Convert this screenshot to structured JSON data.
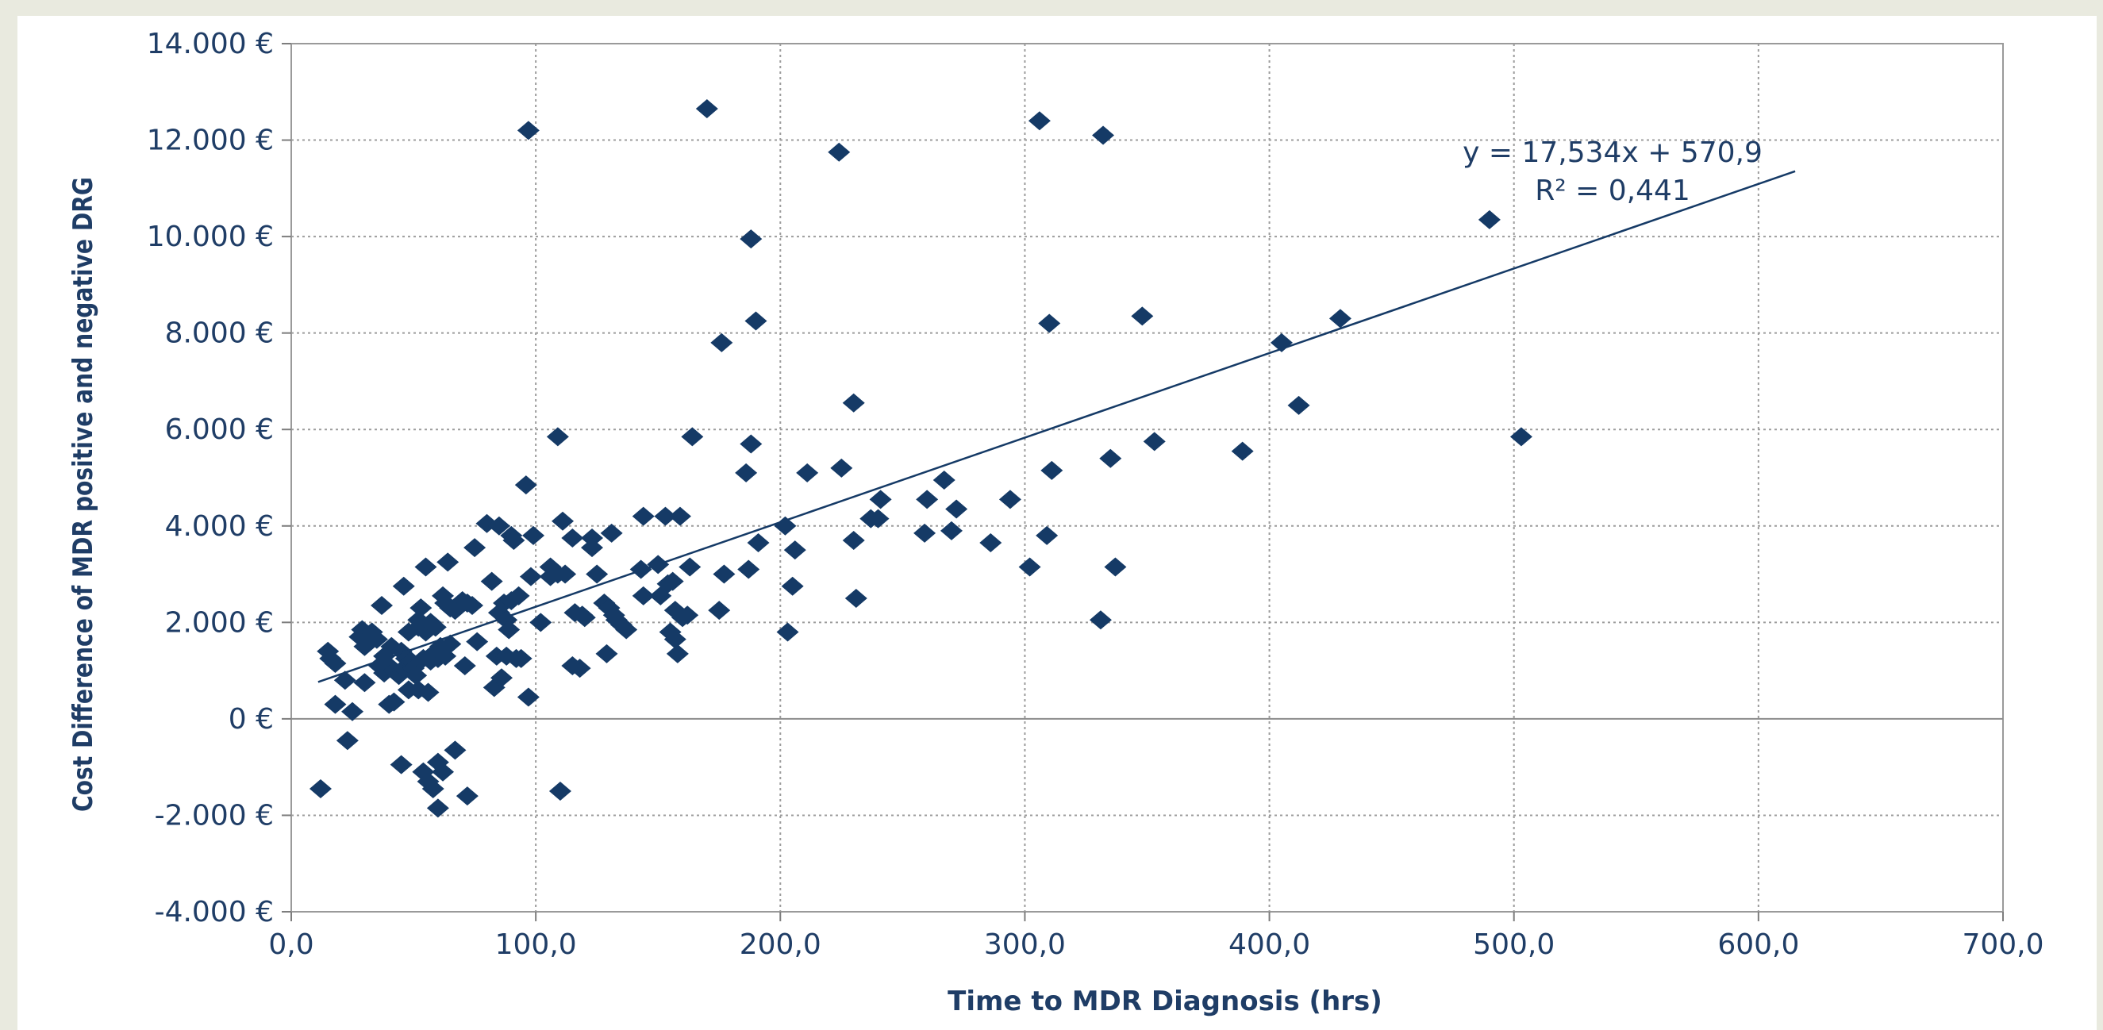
{
  "chart_data": {
    "type": "scatter",
    "title": "",
    "xlabel": "Time to MDR Diagnosis (hrs)",
    "ylabel": "Cost Difference of MDR positive and negative DRG",
    "xlim": [
      0,
      700
    ],
    "ylim": [
      -4000,
      14000
    ],
    "x_tick_labels": [
      "0,0",
      "100,0",
      "200,0",
      "300,0",
      "400,0",
      "500,0",
      "600,0",
      "700,0"
    ],
    "y_tick_labels": [
      "14.000 €",
      "12.000 €",
      "10.000 €",
      "8.000 €",
      "6.000 €",
      "4.000 €",
      "2.000 €",
      "0 €",
      "-2.000 €",
      "-4.000 €"
    ],
    "grid": true,
    "legend": "none",
    "marker_color": "#153a66",
    "line_color": "#153a66",
    "trendline": {
      "slope": 17.534,
      "intercept": 570.9,
      "x_range": [
        11,
        615
      ],
      "equation": "y = 17,534x + 570,9",
      "r_squared": "R² = 0,441"
    },
    "points": [
      [
        12,
        -1450
      ],
      [
        15,
        1400
      ],
      [
        16,
        1250
      ],
      [
        18,
        1150
      ],
      [
        18,
        300
      ],
      [
        22,
        800
      ],
      [
        23,
        -450
      ],
      [
        25,
        150
      ],
      [
        28,
        1700
      ],
      [
        29,
        1850
      ],
      [
        30,
        1500
      ],
      [
        30,
        750
      ],
      [
        32,
        1600
      ],
      [
        33,
        1800
      ],
      [
        35,
        1650
      ],
      [
        36,
        1100
      ],
      [
        37,
        2350
      ],
      [
        38,
        1300
      ],
      [
        38,
        950
      ],
      [
        40,
        1100
      ],
      [
        40,
        300
      ],
      [
        41,
        1500
      ],
      [
        42,
        1000
      ],
      [
        42,
        350
      ],
      [
        44,
        900
      ],
      [
        45,
        1400
      ],
      [
        45,
        -950
      ],
      [
        46,
        1050
      ],
      [
        46,
        2750
      ],
      [
        47,
        1250
      ],
      [
        48,
        600
      ],
      [
        48,
        1800
      ],
      [
        49,
        1200
      ],
      [
        50,
        1050
      ],
      [
        51,
        900
      ],
      [
        52,
        2050
      ],
      [
        52,
        1900
      ],
      [
        52,
        600
      ],
      [
        53,
        2300
      ],
      [
        54,
        1250
      ],
      [
        54,
        -1100
      ],
      [
        55,
        3150
      ],
      [
        55,
        1800
      ],
      [
        56,
        -1300
      ],
      [
        56,
        550
      ],
      [
        57,
        1200
      ],
      [
        57,
        2000
      ],
      [
        58,
        -1450
      ],
      [
        58,
        1350
      ],
      [
        59,
        1900
      ],
      [
        60,
        1250
      ],
      [
        60,
        -900
      ],
      [
        60,
        -1850
      ],
      [
        61,
        1500
      ],
      [
        61,
        1400
      ],
      [
        62,
        -1100
      ],
      [
        62,
        2550
      ],
      [
        63,
        1300
      ],
      [
        63,
        2400
      ],
      [
        64,
        3250
      ],
      [
        65,
        1550
      ],
      [
        65,
        2300
      ],
      [
        67,
        2250
      ],
      [
        67,
        -650
      ],
      [
        70,
        2450
      ],
      [
        71,
        1100
      ],
      [
        72,
        2400
      ],
      [
        72,
        -1600
      ],
      [
        74,
        2350
      ],
      [
        75,
        3550
      ],
      [
        76,
        1600
      ],
      [
        80,
        4050
      ],
      [
        82,
        2850
      ],
      [
        83,
        650
      ],
      [
        84,
        1300
      ],
      [
        85,
        4000
      ],
      [
        85,
        2200
      ],
      [
        86,
        850
      ],
      [
        87,
        2400
      ],
      [
        88,
        1300
      ],
      [
        88,
        2050
      ],
      [
        89,
        1850
      ],
      [
        90,
        3800
      ],
      [
        90,
        2450
      ],
      [
        91,
        3700
      ],
      [
        92,
        1250
      ],
      [
        93,
        2550
      ],
      [
        94,
        1250
      ],
      [
        96,
        4850
      ],
      [
        97,
        450
      ],
      [
        97,
        12200
      ],
      [
        98,
        2950
      ],
      [
        99,
        3800
      ],
      [
        102,
        2000
      ],
      [
        106,
        3150
      ],
      [
        106,
        2950
      ],
      [
        109,
        3000
      ],
      [
        109,
        5850
      ],
      [
        110,
        -1500
      ],
      [
        111,
        4100
      ],
      [
        112,
        3000
      ],
      [
        115,
        1100
      ],
      [
        115,
        3750
      ],
      [
        116,
        2200
      ],
      [
        118,
        1050
      ],
      [
        119,
        2150
      ],
      [
        120,
        2100
      ],
      [
        123,
        3750
      ],
      [
        123,
        3550
      ],
      [
        125,
        3000
      ],
      [
        128,
        2400
      ],
      [
        129,
        1350
      ],
      [
        130,
        2300
      ],
      [
        131,
        3850
      ],
      [
        132,
        2150
      ],
      [
        133,
        2050
      ],
      [
        135,
        1950
      ],
      [
        137,
        1850
      ],
      [
        143,
        3100
      ],
      [
        144,
        2550
      ],
      [
        144,
        4200
      ],
      [
        150,
        3200
      ],
      [
        151,
        2550
      ],
      [
        153,
        4200
      ],
      [
        154,
        2800
      ],
      [
        155,
        1800
      ],
      [
        156,
        2850
      ],
      [
        157,
        1650
      ],
      [
        157,
        2250
      ],
      [
        158,
        1350
      ],
      [
        159,
        4200
      ],
      [
        160,
        2100
      ],
      [
        162,
        2150
      ],
      [
        163,
        3150
      ],
      [
        164,
        5850
      ],
      [
        170,
        12650
      ],
      [
        175,
        2250
      ],
      [
        176,
        7800
      ],
      [
        177,
        3000
      ],
      [
        186,
        5100
      ],
      [
        187,
        3100
      ],
      [
        188,
        5700
      ],
      [
        188,
        9950
      ],
      [
        190,
        8250
      ],
      [
        191,
        3650
      ],
      [
        202,
        4000
      ],
      [
        203,
        1800
      ],
      [
        205,
        2750
      ],
      [
        206,
        3500
      ],
      [
        211,
        5100
      ],
      [
        224,
        11750
      ],
      [
        225,
        5200
      ],
      [
        230,
        3700
      ],
      [
        230,
        6550
      ],
      [
        231,
        2500
      ],
      [
        237,
        4150
      ],
      [
        240,
        4150
      ],
      [
        241,
        4550
      ],
      [
        259,
        3850
      ],
      [
        260,
        4550
      ],
      [
        267,
        4950
      ],
      [
        270,
        3900
      ],
      [
        272,
        4350
      ],
      [
        286,
        3650
      ],
      [
        294,
        4550
      ],
      [
        302,
        3150
      ],
      [
        306,
        12400
      ],
      [
        309,
        3800
      ],
      [
        310,
        8200
      ],
      [
        311,
        5150
      ],
      [
        331,
        2050
      ],
      [
        332,
        12100
      ],
      [
        335,
        5400
      ],
      [
        337,
        3150
      ],
      [
        348,
        8350
      ],
      [
        353,
        5750
      ],
      [
        389,
        5550
      ],
      [
        405,
        7800
      ],
      [
        412,
        6500
      ],
      [
        429,
        8300
      ],
      [
        490,
        10350
      ],
      [
        503,
        5850
      ]
    ]
  }
}
